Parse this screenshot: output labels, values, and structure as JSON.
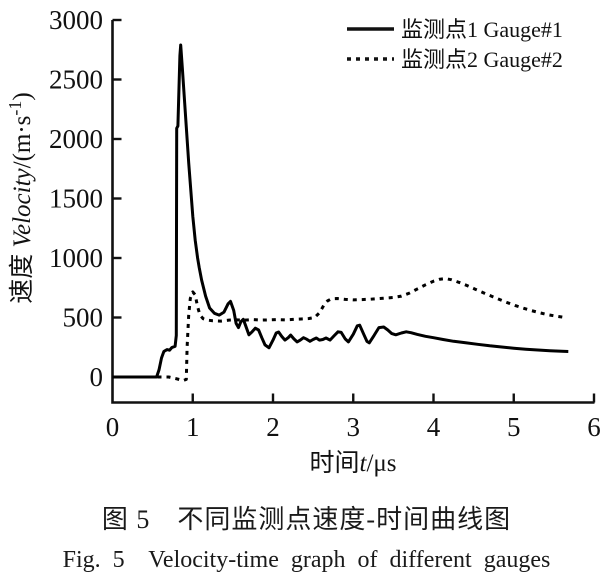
{
  "figure": {
    "caption_cn": "图 5　不同监测点速度-时间曲线图",
    "caption_en": "Fig. 5  Velocity-time graph of different gauges"
  },
  "chart_data": {
    "type": "line",
    "title": "",
    "xlabel": {
      "prefix": "时间",
      "italic": "t",
      "suffix": "/μs"
    },
    "ylabel": {
      "prefix": "速度 ",
      "italic": "Velocity",
      "mid": "/(m·s",
      "sup": "-1",
      "suffix": ")"
    },
    "xlim": [
      0,
      6
    ],
    "ylim": [
      -210,
      3000
    ],
    "xticks": [
      0,
      1,
      2,
      3,
      4,
      5,
      6
    ],
    "yticks": [
      0,
      500,
      1000,
      1500,
      2000,
      2500,
      3000
    ],
    "grid": false,
    "legend_position": "top-right",
    "line_color": "#000000",
    "axis_color": "#111111",
    "series": [
      {
        "name": "监测点1 Gauge#1",
        "style": "solid",
        "points": [
          [
            0,
            0
          ],
          [
            0.55,
            0
          ],
          [
            0.58,
            60
          ],
          [
            0.61,
            160
          ],
          [
            0.64,
            215
          ],
          [
            0.68,
            230
          ],
          [
            0.71,
            225
          ],
          [
            0.74,
            248
          ],
          [
            0.78,
            258
          ],
          [
            0.795,
            350
          ],
          [
            0.8,
            2090
          ],
          [
            0.815,
            2110
          ],
          [
            0.84,
            2700
          ],
          [
            0.85,
            2790
          ],
          [
            0.87,
            2600
          ],
          [
            0.9,
            2300
          ],
          [
            0.95,
            1800
          ],
          [
            1.0,
            1350
          ],
          [
            1.03,
            1150
          ],
          [
            1.06,
            1000
          ],
          [
            1.08,
            920
          ],
          [
            1.11,
            815
          ],
          [
            1.16,
            680
          ],
          [
            1.21,
            580
          ],
          [
            1.27,
            535
          ],
          [
            1.33,
            520
          ],
          [
            1.39,
            545
          ],
          [
            1.44,
            615
          ],
          [
            1.47,
            635
          ],
          [
            1.51,
            560
          ],
          [
            1.54,
            450
          ],
          [
            1.57,
            415
          ],
          [
            1.6,
            465
          ],
          [
            1.63,
            485
          ],
          [
            1.66,
            430
          ],
          [
            1.7,
            355
          ],
          [
            1.74,
            380
          ],
          [
            1.78,
            410
          ],
          [
            1.82,
            395
          ],
          [
            1.86,
            330
          ],
          [
            1.9,
            270
          ],
          [
            1.95,
            245
          ],
          [
            2.0,
            310
          ],
          [
            2.04,
            370
          ],
          [
            2.07,
            378
          ],
          [
            2.11,
            340
          ],
          [
            2.15,
            310
          ],
          [
            2.19,
            330
          ],
          [
            2.22,
            352
          ],
          [
            2.26,
            320
          ],
          [
            2.3,
            295
          ],
          [
            2.34,
            310
          ],
          [
            2.38,
            330
          ],
          [
            2.42,
            318
          ],
          [
            2.46,
            300
          ],
          [
            2.5,
            315
          ],
          [
            2.54,
            328
          ],
          [
            2.58,
            310
          ],
          [
            2.62,
            315
          ],
          [
            2.66,
            328
          ],
          [
            2.71,
            310
          ],
          [
            2.76,
            345
          ],
          [
            2.81,
            380
          ],
          [
            2.85,
            375
          ],
          [
            2.9,
            320
          ],
          [
            2.94,
            295
          ],
          [
            3.0,
            360
          ],
          [
            3.05,
            430
          ],
          [
            3.08,
            435
          ],
          [
            3.13,
            360
          ],
          [
            3.17,
            300
          ],
          [
            3.2,
            287
          ],
          [
            3.26,
            350
          ],
          [
            3.32,
            415
          ],
          [
            3.38,
            420
          ],
          [
            3.43,
            395
          ],
          [
            3.48,
            365
          ],
          [
            3.53,
            355
          ],
          [
            3.6,
            370
          ],
          [
            3.66,
            380
          ],
          [
            3.72,
            372
          ],
          [
            3.8,
            358
          ],
          [
            3.9,
            342
          ],
          [
            4.0,
            330
          ],
          [
            4.12,
            315
          ],
          [
            4.25,
            300
          ],
          [
            4.4,
            288
          ],
          [
            4.55,
            275
          ],
          [
            4.7,
            262
          ],
          [
            4.85,
            252
          ],
          [
            5.0,
            242
          ],
          [
            5.15,
            234
          ],
          [
            5.3,
            227
          ],
          [
            5.45,
            221
          ],
          [
            5.6,
            216
          ],
          [
            5.68,
            214
          ]
        ]
      },
      {
        "name": "监测点2 Gauge#2",
        "style": "dashed",
        "points": [
          [
            0,
            0
          ],
          [
            0.7,
            0
          ],
          [
            0.8,
            -15
          ],
          [
            0.88,
            -30
          ],
          [
            0.92,
            -20
          ],
          [
            0.93,
            250
          ],
          [
            0.95,
            520
          ],
          [
            0.97,
            660
          ],
          [
            1.0,
            715
          ],
          [
            1.03,
            690
          ],
          [
            1.06,
            590
          ],
          [
            1.09,
            520
          ],
          [
            1.13,
            490
          ],
          [
            1.18,
            478
          ],
          [
            1.25,
            472
          ],
          [
            1.35,
            470
          ],
          [
            1.45,
            478
          ],
          [
            1.55,
            480
          ],
          [
            1.65,
            478
          ],
          [
            1.75,
            482
          ],
          [
            1.85,
            478
          ],
          [
            1.95,
            480
          ],
          [
            2.05,
            482
          ],
          [
            2.15,
            480
          ],
          [
            2.25,
            484
          ],
          [
            2.35,
            487
          ],
          [
            2.45,
            492
          ],
          [
            2.52,
            500
          ],
          [
            2.58,
            540
          ],
          [
            2.63,
            600
          ],
          [
            2.68,
            640
          ],
          [
            2.73,
            658
          ],
          [
            2.8,
            660
          ],
          [
            2.9,
            652
          ],
          [
            3.0,
            648
          ],
          [
            3.1,
            650
          ],
          [
            3.2,
            653
          ],
          [
            3.3,
            658
          ],
          [
            3.4,
            663
          ],
          [
            3.5,
            668
          ],
          [
            3.6,
            680
          ],
          [
            3.7,
            705
          ],
          [
            3.8,
            740
          ],
          [
            3.9,
            775
          ],
          [
            4.0,
            805
          ],
          [
            4.08,
            822
          ],
          [
            4.15,
            827
          ],
          [
            4.22,
            818
          ],
          [
            4.32,
            795
          ],
          [
            4.42,
            768
          ],
          [
            4.52,
            738
          ],
          [
            4.62,
            708
          ],
          [
            4.72,
            680
          ],
          [
            4.82,
            652
          ],
          [
            4.92,
            625
          ],
          [
            5.02,
            600
          ],
          [
            5.12,
            578
          ],
          [
            5.22,
            558
          ],
          [
            5.32,
            540
          ],
          [
            5.42,
            524
          ],
          [
            5.52,
            512
          ],
          [
            5.6,
            504
          ],
          [
            5.64,
            500
          ]
        ]
      }
    ]
  }
}
